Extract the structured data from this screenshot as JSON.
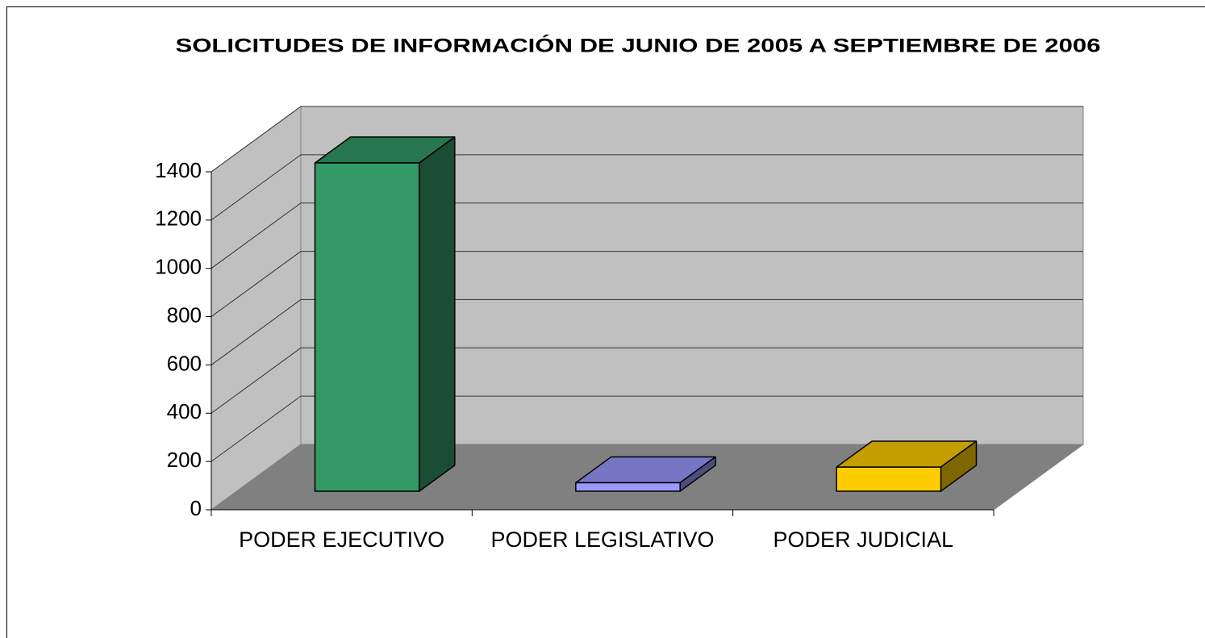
{
  "chart_data": {
    "type": "bar3d",
    "title": "SOLICITUDES DE INFORMACIÓN DE JUNIO DE 2005 A SEPTIEMBRE DE 2006",
    "categories": [
      "PODER EJECUTIVO",
      "PODER LEGISLATIVO",
      "PODER JUDICIAL"
    ],
    "values": [
      1360,
      35,
      100
    ],
    "colors": [
      "#339966",
      "#9999ff",
      "#ffcc00"
    ],
    "ylim": [
      0,
      1400
    ],
    "yticks": [
      0,
      200,
      400,
      600,
      800,
      1000,
      1200,
      1400
    ],
    "grid": true
  }
}
